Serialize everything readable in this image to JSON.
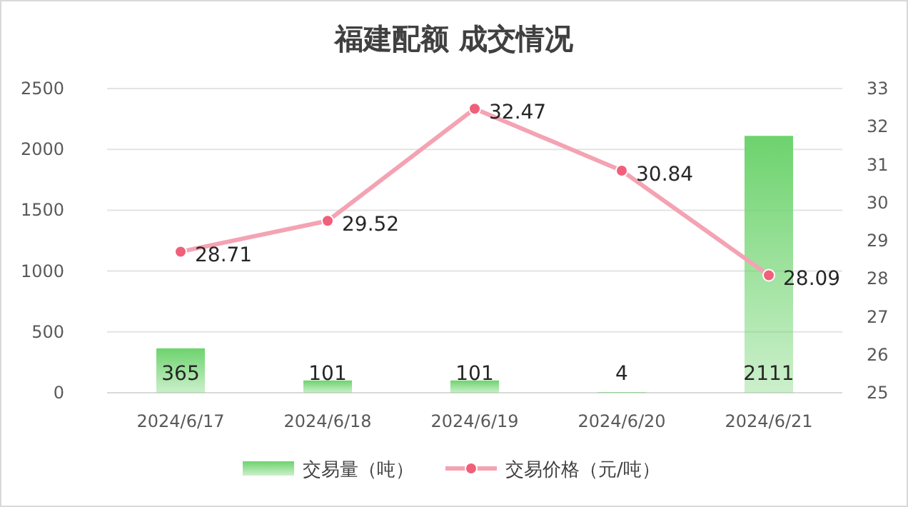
{
  "chart_data": {
    "type": "bar",
    "title": "福建配额 成交情况",
    "categories": [
      "2024/6/17",
      "2024/6/18",
      "2024/6/19",
      "2024/6/20",
      "2024/6/21"
    ],
    "series": [
      {
        "name": "交易量（吨）",
        "color": "#6dd36d",
        "values": [
          365,
          101,
          101,
          4,
          2111
        ]
      },
      {
        "name": "交易价格（元/吨）",
        "type": "line",
        "axis": "y2",
        "color": "#f4a3b3",
        "values": [
          28.71,
          29.52,
          32.47,
          30.84,
          28.09
        ]
      }
    ],
    "ylim": [
      0,
      2500
    ],
    "yticks": [
      0,
      500,
      1000,
      1500,
      2000,
      2500
    ],
    "y2lim": [
      25,
      33
    ],
    "y2ticks": [
      25,
      26,
      27,
      28,
      29,
      30,
      31,
      32,
      33
    ],
    "grid": "y",
    "legend": "bottom",
    "marker": "circle",
    "data_labels": true
  }
}
